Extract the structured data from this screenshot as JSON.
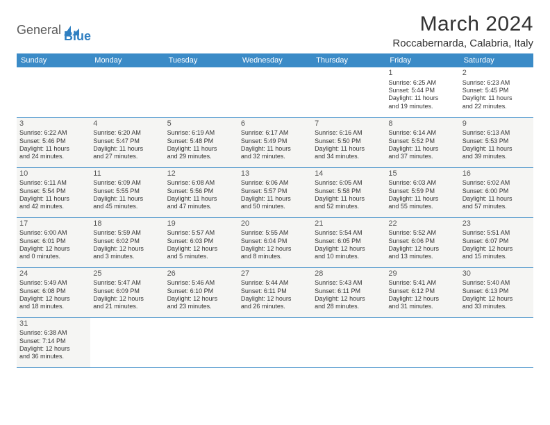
{
  "brand": {
    "general": "General",
    "blue": "Blue"
  },
  "title": "March 2024",
  "location": "Roccabernarda, Calabria, Italy",
  "weekdays": [
    "Sunday",
    "Monday",
    "Tuesday",
    "Wednesday",
    "Thursday",
    "Friday",
    "Saturday"
  ],
  "colors": {
    "header_bg": "#3b8bc7",
    "header_fg": "#ffffff",
    "cell_bg": "#f5f5f3",
    "rule": "#3b8bc7"
  },
  "weeks": [
    [
      null,
      null,
      null,
      null,
      null,
      {
        "day": "1",
        "sunrise": "Sunrise: 6:25 AM",
        "sunset": "Sunset: 5:44 PM",
        "daylight1": "Daylight: 11 hours",
        "daylight2": "and 19 minutes."
      },
      {
        "day": "2",
        "sunrise": "Sunrise: 6:23 AM",
        "sunset": "Sunset: 5:45 PM",
        "daylight1": "Daylight: 11 hours",
        "daylight2": "and 22 minutes."
      }
    ],
    [
      {
        "day": "3",
        "sunrise": "Sunrise: 6:22 AM",
        "sunset": "Sunset: 5:46 PM",
        "daylight1": "Daylight: 11 hours",
        "daylight2": "and 24 minutes."
      },
      {
        "day": "4",
        "sunrise": "Sunrise: 6:20 AM",
        "sunset": "Sunset: 5:47 PM",
        "daylight1": "Daylight: 11 hours",
        "daylight2": "and 27 minutes."
      },
      {
        "day": "5",
        "sunrise": "Sunrise: 6:19 AM",
        "sunset": "Sunset: 5:48 PM",
        "daylight1": "Daylight: 11 hours",
        "daylight2": "and 29 minutes."
      },
      {
        "day": "6",
        "sunrise": "Sunrise: 6:17 AM",
        "sunset": "Sunset: 5:49 PM",
        "daylight1": "Daylight: 11 hours",
        "daylight2": "and 32 minutes."
      },
      {
        "day": "7",
        "sunrise": "Sunrise: 6:16 AM",
        "sunset": "Sunset: 5:50 PM",
        "daylight1": "Daylight: 11 hours",
        "daylight2": "and 34 minutes."
      },
      {
        "day": "8",
        "sunrise": "Sunrise: 6:14 AM",
        "sunset": "Sunset: 5:52 PM",
        "daylight1": "Daylight: 11 hours",
        "daylight2": "and 37 minutes."
      },
      {
        "day": "9",
        "sunrise": "Sunrise: 6:13 AM",
        "sunset": "Sunset: 5:53 PM",
        "daylight1": "Daylight: 11 hours",
        "daylight2": "and 39 minutes."
      }
    ],
    [
      {
        "day": "10",
        "sunrise": "Sunrise: 6:11 AM",
        "sunset": "Sunset: 5:54 PM",
        "daylight1": "Daylight: 11 hours",
        "daylight2": "and 42 minutes."
      },
      {
        "day": "11",
        "sunrise": "Sunrise: 6:09 AM",
        "sunset": "Sunset: 5:55 PM",
        "daylight1": "Daylight: 11 hours",
        "daylight2": "and 45 minutes."
      },
      {
        "day": "12",
        "sunrise": "Sunrise: 6:08 AM",
        "sunset": "Sunset: 5:56 PM",
        "daylight1": "Daylight: 11 hours",
        "daylight2": "and 47 minutes."
      },
      {
        "day": "13",
        "sunrise": "Sunrise: 6:06 AM",
        "sunset": "Sunset: 5:57 PM",
        "daylight1": "Daylight: 11 hours",
        "daylight2": "and 50 minutes."
      },
      {
        "day": "14",
        "sunrise": "Sunrise: 6:05 AM",
        "sunset": "Sunset: 5:58 PM",
        "daylight1": "Daylight: 11 hours",
        "daylight2": "and 52 minutes."
      },
      {
        "day": "15",
        "sunrise": "Sunrise: 6:03 AM",
        "sunset": "Sunset: 5:59 PM",
        "daylight1": "Daylight: 11 hours",
        "daylight2": "and 55 minutes."
      },
      {
        "day": "16",
        "sunrise": "Sunrise: 6:02 AM",
        "sunset": "Sunset: 6:00 PM",
        "daylight1": "Daylight: 11 hours",
        "daylight2": "and 57 minutes."
      }
    ],
    [
      {
        "day": "17",
        "sunrise": "Sunrise: 6:00 AM",
        "sunset": "Sunset: 6:01 PM",
        "daylight1": "Daylight: 12 hours",
        "daylight2": "and 0 minutes."
      },
      {
        "day": "18",
        "sunrise": "Sunrise: 5:59 AM",
        "sunset": "Sunset: 6:02 PM",
        "daylight1": "Daylight: 12 hours",
        "daylight2": "and 3 minutes."
      },
      {
        "day": "19",
        "sunrise": "Sunrise: 5:57 AM",
        "sunset": "Sunset: 6:03 PM",
        "daylight1": "Daylight: 12 hours",
        "daylight2": "and 5 minutes."
      },
      {
        "day": "20",
        "sunrise": "Sunrise: 5:55 AM",
        "sunset": "Sunset: 6:04 PM",
        "daylight1": "Daylight: 12 hours",
        "daylight2": "and 8 minutes."
      },
      {
        "day": "21",
        "sunrise": "Sunrise: 5:54 AM",
        "sunset": "Sunset: 6:05 PM",
        "daylight1": "Daylight: 12 hours",
        "daylight2": "and 10 minutes."
      },
      {
        "day": "22",
        "sunrise": "Sunrise: 5:52 AM",
        "sunset": "Sunset: 6:06 PM",
        "daylight1": "Daylight: 12 hours",
        "daylight2": "and 13 minutes."
      },
      {
        "day": "23",
        "sunrise": "Sunrise: 5:51 AM",
        "sunset": "Sunset: 6:07 PM",
        "daylight1": "Daylight: 12 hours",
        "daylight2": "and 15 minutes."
      }
    ],
    [
      {
        "day": "24",
        "sunrise": "Sunrise: 5:49 AM",
        "sunset": "Sunset: 6:08 PM",
        "daylight1": "Daylight: 12 hours",
        "daylight2": "and 18 minutes."
      },
      {
        "day": "25",
        "sunrise": "Sunrise: 5:47 AM",
        "sunset": "Sunset: 6:09 PM",
        "daylight1": "Daylight: 12 hours",
        "daylight2": "and 21 minutes."
      },
      {
        "day": "26",
        "sunrise": "Sunrise: 5:46 AM",
        "sunset": "Sunset: 6:10 PM",
        "daylight1": "Daylight: 12 hours",
        "daylight2": "and 23 minutes."
      },
      {
        "day": "27",
        "sunrise": "Sunrise: 5:44 AM",
        "sunset": "Sunset: 6:11 PM",
        "daylight1": "Daylight: 12 hours",
        "daylight2": "and 26 minutes."
      },
      {
        "day": "28",
        "sunrise": "Sunrise: 5:43 AM",
        "sunset": "Sunset: 6:11 PM",
        "daylight1": "Daylight: 12 hours",
        "daylight2": "and 28 minutes."
      },
      {
        "day": "29",
        "sunrise": "Sunrise: 5:41 AM",
        "sunset": "Sunset: 6:12 PM",
        "daylight1": "Daylight: 12 hours",
        "daylight2": "and 31 minutes."
      },
      {
        "day": "30",
        "sunrise": "Sunrise: 5:40 AM",
        "sunset": "Sunset: 6:13 PM",
        "daylight1": "Daylight: 12 hours",
        "daylight2": "and 33 minutes."
      }
    ],
    [
      {
        "day": "31",
        "sunrise": "Sunrise: 6:38 AM",
        "sunset": "Sunset: 7:14 PM",
        "daylight1": "Daylight: 12 hours",
        "daylight2": "and 36 minutes."
      },
      null,
      null,
      null,
      null,
      null,
      null
    ]
  ]
}
